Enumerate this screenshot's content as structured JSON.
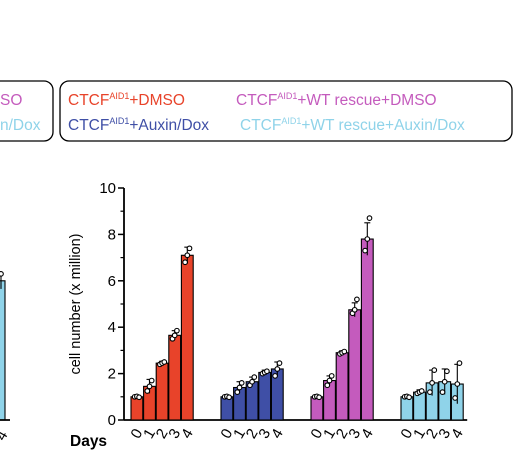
{
  "chart_data": {
    "type": "bar",
    "ylabel": "cell number (x million)",
    "xlabel": "Days",
    "ylim": [
      0,
      10
    ],
    "yticks": [
      0,
      2,
      4,
      6,
      8,
      10
    ],
    "categories": [
      "0",
      "1",
      "2",
      "3",
      "4"
    ],
    "legend_superscript": "AID1",
    "series": [
      {
        "name": "CTCF+DMSO",
        "prefix": "CTCF",
        "suffix": "+DMSO",
        "color": "#e8432a",
        "values": [
          1.0,
          1.45,
          2.45,
          3.65,
          7.1
        ],
        "errors": [
          0.05,
          0.3,
          0.08,
          0.2,
          0.35
        ],
        "points": [
          [
            1.0,
            1.02,
            0.98
          ],
          [
            1.25,
            1.45,
            1.7
          ],
          [
            2.4,
            2.45,
            2.5
          ],
          [
            3.5,
            3.65,
            3.85
          ],
          [
            6.8,
            7.1,
            7.4
          ]
        ]
      },
      {
        "name": "CTCF+Auxin/Dox",
        "prefix": "CTCF",
        "suffix": "+Auxin/Dox",
        "color": "#3f4fa6",
        "values": [
          1.0,
          1.4,
          1.65,
          2.05,
          2.2
        ],
        "errors": [
          0.05,
          0.25,
          0.2,
          0.1,
          0.3
        ],
        "points": [
          [
            1.0,
            1.02,
            0.98
          ],
          [
            1.2,
            1.4,
            1.6
          ],
          [
            1.5,
            1.65,
            1.85
          ],
          [
            2.0,
            2.05,
            2.1
          ],
          [
            1.9,
            2.2,
            2.45
          ]
        ]
      },
      {
        "name": "CTCF+WT rescue+DMSO",
        "prefix": "CTCF",
        "suffix": "+WT rescue+DMSO",
        "color": "#c45bbd",
        "values": [
          1.0,
          1.7,
          2.9,
          4.75,
          7.8
        ],
        "errors": [
          0.05,
          0.2,
          0.08,
          0.3,
          0.7
        ],
        "points": [
          [
            1.0,
            1.02,
            0.98
          ],
          [
            1.5,
            1.7,
            1.9
          ],
          [
            2.85,
            2.9,
            2.95
          ],
          [
            4.6,
            4.75,
            5.2
          ],
          [
            7.3,
            7.8,
            8.7
          ]
        ]
      },
      {
        "name": "CTCF+WT rescue+Auxin/Dox",
        "prefix": "CTCF",
        "suffix": "+WT rescue+Auxin/Dox",
        "color": "#8fd3e9",
        "values": [
          1.0,
          1.2,
          1.6,
          1.65,
          1.55
        ],
        "errors": [
          0.05,
          0.1,
          0.55,
          0.55,
          0.85
        ],
        "points": [
          [
            1.0,
            1.02,
            0.98
          ],
          [
            1.15,
            1.2,
            1.25
          ],
          [
            1.2,
            1.6,
            2.15
          ],
          [
            1.2,
            1.65,
            2.1
          ],
          [
            0.95,
            1.55,
            2.45
          ]
        ]
      }
    ],
    "left_fragment": {
      "legend_line1": "SO",
      "legend_line2": "n/Dox",
      "axis_tick": "4",
      "color": "#8fd3e9",
      "bar_value": 6.0
    }
  }
}
